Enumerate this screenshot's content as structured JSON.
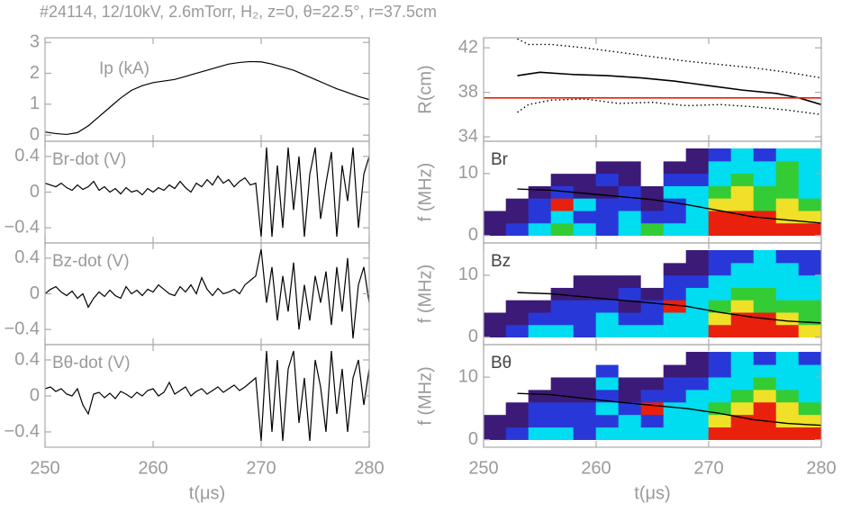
{
  "title": "#24114, 12/10kV, 2.6mTorr, H₂, z=0, θ=22.5°, r=37.5cm",
  "chart_data": [
    {
      "type": "line",
      "label": "Ip (kA)",
      "color": "#000000",
      "x": [
        250,
        251,
        252,
        253,
        254,
        255,
        256,
        257,
        258,
        259,
        260,
        261,
        262,
        263,
        264,
        265,
        266,
        267,
        268,
        269,
        270,
        271,
        272,
        273,
        274,
        275,
        276,
        277,
        278,
        279,
        280
      ],
      "values": [
        0.1,
        0.05,
        0.02,
        0.08,
        0.3,
        0.6,
        0.9,
        1.2,
        1.45,
        1.6,
        1.7,
        1.75,
        1.8,
        1.9,
        2.0,
        2.1,
        2.2,
        2.3,
        2.35,
        2.38,
        2.37,
        2.3,
        2.2,
        2.1,
        1.95,
        1.8,
        1.65,
        1.5,
        1.38,
        1.25,
        1.15
      ],
      "xlim": [
        250,
        280
      ],
      "xticks": [
        250,
        260,
        270,
        280
      ],
      "ylim": [
        -0.2,
        3.15
      ],
      "yticks": [
        0,
        1,
        2,
        3
      ]
    },
    {
      "type": "line",
      "label": "Br-dot (V)",
      "color": "#000000",
      "x": [
        250,
        250.5,
        251,
        251.5,
        252,
        252.5,
        253,
        253.5,
        254,
        254.5,
        255,
        255.5,
        256,
        256.5,
        257,
        257.5,
        258,
        258.5,
        259,
        259.5,
        260,
        260.5,
        261,
        261.5,
        262,
        262.5,
        263,
        263.5,
        264,
        264.5,
        265,
        265.5,
        266,
        266.5,
        267,
        267.5,
        268,
        268.5,
        269,
        269.5,
        270,
        270.5,
        271,
        271.5,
        272,
        272.5,
        273,
        273.5,
        274,
        274.5,
        275,
        275.5,
        276,
        276.5,
        277,
        277.5,
        278,
        278.5,
        279,
        279.5,
        280
      ],
      "values": [
        0.1,
        0.08,
        0.06,
        0.1,
        0.05,
        0.02,
        0.08,
        0.03,
        0.06,
        0.12,
        0.02,
        0.06,
        0.0,
        0.04,
        -0.02,
        0.05,
        0.0,
        0.02,
        -0.03,
        0.04,
        0.0,
        0.05,
        0.02,
        0.08,
        0.04,
        0.12,
        0.05,
        0.0,
        0.1,
        0.06,
        0.14,
        0.08,
        0.18,
        0.1,
        0.14,
        0.06,
        0.12,
        0.16,
        0.08,
        0.1,
        -0.5,
        0.5,
        -0.5,
        0.3,
        -0.4,
        0.5,
        -0.2,
        0.4,
        -0.5,
        0.2,
        0.5,
        -0.3,
        0.1,
        0.45,
        -0.5,
        0.3,
        -0.1,
        0.5,
        -0.4,
        0.2,
        0.4
      ],
      "xlim": [
        250,
        280
      ],
      "xticks": [
        250,
        260,
        270,
        280
      ],
      "ylim": [
        -0.57,
        0.57
      ],
      "yticks": [
        0.4,
        0,
        {
          "value": -0.4,
          "label": "−0.4"
        }
      ]
    },
    {
      "type": "line",
      "label": "Bz-dot (V)",
      "color": "#000000",
      "x": [
        250,
        250.5,
        251,
        251.5,
        252,
        252.5,
        253,
        253.5,
        254,
        254.5,
        255,
        255.5,
        256,
        256.5,
        257,
        257.5,
        258,
        258.5,
        259,
        259.5,
        260,
        260.5,
        261,
        261.5,
        262,
        262.5,
        263,
        263.5,
        264,
        264.5,
        265,
        265.5,
        266,
        266.5,
        267,
        267.5,
        268,
        268.5,
        269,
        269.5,
        270,
        270.5,
        271,
        271.5,
        272,
        272.5,
        273,
        273.5,
        274,
        274.5,
        275,
        275.5,
        276,
        276.5,
        277,
        277.5,
        278,
        278.5,
        279,
        279.5,
        280
      ],
      "values": [
        0.0,
        0.05,
        0.08,
        0.02,
        -0.02,
        0.03,
        -0.05,
        0.0,
        -0.15,
        -0.05,
        0.02,
        -0.03,
        0.04,
        -0.02,
        -0.05,
        0.08,
        0.0,
        0.04,
        -0.02,
        0.05,
        0.02,
        0.1,
        0.05,
        0.0,
        -0.02,
        0.08,
        0.02,
        0.1,
        0.0,
        0.18,
        0.05,
        -0.02,
        0.06,
        0.0,
        0.02,
        0.05,
        0.0,
        0.1,
        0.15,
        0.2,
        0.5,
        -0.1,
        0.3,
        -0.3,
        0.2,
        -0.2,
        0.35,
        -0.4,
        0.1,
        -0.3,
        0.2,
        -0.1,
        0.25,
        -0.35,
        0.3,
        -0.2,
        0.4,
        -0.5,
        0.1,
        0.3,
        -0.1
      ],
      "xlim": [
        250,
        280
      ],
      "xticks": [
        250,
        260,
        270,
        280
      ],
      "ylim": [
        -0.57,
        0.57
      ],
      "yticks": [
        0.4,
        0,
        {
          "value": -0.4,
          "label": "−0.4"
        }
      ]
    },
    {
      "type": "line",
      "label": "Bθ-dot (V)",
      "color": "#000000",
      "xlabel": "t(μs)",
      "x": [
        250,
        250.5,
        251,
        251.5,
        252,
        252.5,
        253,
        253.5,
        254,
        254.5,
        255,
        255.5,
        256,
        256.5,
        257,
        257.5,
        258,
        258.5,
        259,
        259.5,
        260,
        260.5,
        261,
        261.5,
        262,
        262.5,
        263,
        263.5,
        264,
        264.5,
        265,
        265.5,
        266,
        266.5,
        267,
        267.5,
        268,
        268.5,
        269,
        269.5,
        270,
        270.5,
        271,
        271.5,
        272,
        272.5,
        273,
        273.5,
        274,
        274.5,
        275,
        275.5,
        276,
        276.5,
        277,
        277.5,
        278,
        278.5,
        279,
        279.5,
        280
      ],
      "values": [
        0.08,
        0.1,
        0.05,
        0.08,
        0.02,
        0.0,
        0.08,
        -0.1,
        -0.2,
        0.02,
        0.04,
        -0.02,
        0.03,
        -0.03,
        0.05,
        0.02,
        -0.02,
        0.04,
        0.0,
        0.06,
        0.08,
        0.0,
        0.04,
        0.15,
        0.02,
        0.06,
        0.1,
        0.0,
        0.05,
        0.08,
        0.02,
        0.06,
        0.1,
        0.04,
        0.08,
        0.12,
        0.06,
        0.1,
        0.15,
        0.2,
        -0.5,
        0.5,
        -0.4,
        0.4,
        -0.5,
        0.3,
        0.5,
        -0.3,
        0.2,
        -0.5,
        0.4,
        0.1,
        -0.4,
        0.5,
        -0.2,
        0.3,
        -0.4,
        0.2,
        0.4,
        -0.1,
        0.3
      ],
      "xlim": [
        250,
        280
      ],
      "xticks": [
        250,
        260,
        270,
        280
      ],
      "ylim": [
        -0.57,
        0.57
      ],
      "yticks": [
        0.4,
        0,
        {
          "value": -0.4,
          "label": "−0.4"
        }
      ]
    },
    {
      "type": "multiline",
      "ylabel": "R(cm)",
      "series": [
        {
          "color": "#000000",
          "style": "solid",
          "x": [
            253,
            255,
            258,
            261,
            264,
            267,
            270,
            273,
            276,
            278,
            280
          ],
          "values": [
            39.5,
            39.8,
            39.6,
            39.5,
            39.3,
            39.0,
            38.6,
            38.2,
            37.9,
            37.5,
            36.9
          ]
        },
        {
          "color": "#000000",
          "style": "dotted",
          "x": [
            253,
            254,
            256,
            259,
            262,
            265,
            268,
            271,
            274,
            277,
            280
          ],
          "values": [
            42.8,
            42.3,
            42.3,
            42.0,
            41.6,
            41.2,
            40.8,
            40.5,
            40.2,
            39.8,
            39.3
          ]
        },
        {
          "color": "#000000",
          "style": "dotted",
          "x": [
            253,
            254,
            256,
            259,
            262,
            265,
            268,
            271,
            274,
            277,
            280
          ],
          "values": [
            36.2,
            36.9,
            37.3,
            37.4,
            37.0,
            37.1,
            36.8,
            36.9,
            36.7,
            36.4,
            36.0
          ]
        },
        {
          "color": "#e8200c",
          "style": "solid",
          "x": [
            250,
            280
          ],
          "values": [
            37.5,
            37.5
          ]
        }
      ],
      "xlim": [
        250,
        280
      ],
      "xticks": [
        250,
        260,
        270,
        280
      ],
      "ylim": [
        33.6,
        42.9
      ],
      "yticks": [
        34,
        38,
        42
      ]
    },
    {
      "type": "heatmap",
      "label": "Br",
      "ylabel": "f (MHz)",
      "colors": [
        "#ffffff",
        "#3c1a78",
        "#2838d8",
        "#00dcf0",
        "#34cc34",
        "#f0e028",
        "#e8200c"
      ],
      "xbins": [
        250,
        252,
        254,
        256,
        258,
        260,
        262,
        264,
        266,
        268,
        270,
        272,
        274,
        276,
        278,
        280
      ],
      "ybins": [
        0,
        2,
        4,
        6,
        8,
        10,
        12,
        14
      ],
      "z": [
        [
          1,
          2,
          3,
          4,
          3,
          2,
          3,
          4,
          3,
          3,
          6,
          6,
          6,
          6,
          6
        ],
        [
          1,
          1,
          2,
          3,
          2,
          2,
          3,
          2,
          2,
          3,
          6,
          6,
          6,
          5,
          5
        ],
        [
          0,
          1,
          2,
          6,
          3,
          2,
          2,
          1,
          2,
          3,
          5,
          5,
          4,
          5,
          4
        ],
        [
          0,
          0,
          1,
          2,
          1,
          1,
          2,
          1,
          3,
          3,
          4,
          5,
          4,
          4,
          3
        ],
        [
          0,
          0,
          0,
          1,
          1,
          2,
          1,
          0,
          2,
          2,
          3,
          4,
          3,
          4,
          3
        ],
        [
          0,
          0,
          0,
          0,
          0,
          1,
          1,
          0,
          1,
          1,
          3,
          3,
          3,
          4,
          3
        ],
        [
          0,
          0,
          0,
          0,
          0,
          0,
          0,
          0,
          0,
          1,
          2,
          3,
          2,
          3,
          3
        ]
      ],
      "line": {
        "color": "#000000",
        "x": [
          253,
          256,
          259,
          262,
          265,
          268,
          271,
          274,
          277,
          280
        ],
        "values": [
          7.5,
          7.3,
          6.8,
          6.3,
          5.8,
          5.0,
          4.0,
          3.0,
          2.5,
          2.0
        ]
      },
      "xlim": [
        250,
        280
      ],
      "xticks": [
        250,
        260,
        270,
        280
      ],
      "ylim": [
        -1.2,
        15.2
      ],
      "yticks": [
        0,
        10
      ]
    },
    {
      "type": "heatmap",
      "label": "Bz",
      "ylabel": "f (MHz)",
      "colors": [
        "#ffffff",
        "#3c1a78",
        "#2838d8",
        "#00dcf0",
        "#34cc34",
        "#f0e028",
        "#e8200c"
      ],
      "xbins": [
        250,
        252,
        254,
        256,
        258,
        260,
        262,
        264,
        266,
        268,
        270,
        272,
        274,
        276,
        278,
        280
      ],
      "ybins": [
        0,
        2,
        4,
        6,
        8,
        10,
        12,
        14
      ],
      "z": [
        [
          1,
          2,
          3,
          3,
          2,
          3,
          3,
          3,
          3,
          3,
          6,
          6,
          6,
          6,
          5
        ],
        [
          1,
          1,
          2,
          2,
          2,
          3,
          2,
          2,
          3,
          3,
          5,
          6,
          6,
          5,
          4
        ],
        [
          0,
          1,
          1,
          2,
          2,
          2,
          1,
          2,
          6,
          3,
          4,
          5,
          4,
          4,
          4
        ],
        [
          0,
          0,
          0,
          1,
          1,
          1,
          2,
          1,
          2,
          3,
          3,
          4,
          4,
          3,
          3
        ],
        [
          0,
          0,
          0,
          0,
          1,
          1,
          1,
          0,
          2,
          2,
          3,
          3,
          3,
          3,
          3
        ],
        [
          0,
          0,
          0,
          0,
          0,
          0,
          0,
          0,
          1,
          1,
          2,
          3,
          3,
          3,
          2
        ],
        [
          0,
          0,
          0,
          0,
          0,
          0,
          0,
          0,
          0,
          1,
          2,
          2,
          3,
          2,
          2
        ]
      ],
      "line": {
        "color": "#000000",
        "x": [
          253,
          256,
          259,
          262,
          265,
          268,
          271,
          274,
          277,
          280
        ],
        "values": [
          7.2,
          7.0,
          6.5,
          6.0,
          5.5,
          5.0,
          4.0,
          3.2,
          2.6,
          2.3
        ]
      },
      "xlim": [
        250,
        280
      ],
      "xticks": [
        250,
        260,
        270,
        280
      ],
      "ylim": [
        -1.2,
        15.2
      ],
      "yticks": [
        0,
        10
      ]
    },
    {
      "type": "heatmap",
      "label": "Bθ",
      "ylabel": "f (MHz)",
      "xlabel": "t(μs)",
      "colors": [
        "#ffffff",
        "#3c1a78",
        "#2838d8",
        "#00dcf0",
        "#34cc34",
        "#f0e028",
        "#e8200c"
      ],
      "xbins": [
        250,
        252,
        254,
        256,
        258,
        260,
        262,
        264,
        266,
        268,
        270,
        272,
        274,
        276,
        278,
        280
      ],
      "ybins": [
        0,
        2,
        4,
        6,
        8,
        10,
        12,
        14
      ],
      "z": [
        [
          1,
          2,
          3,
          3,
          2,
          3,
          3,
          3,
          3,
          3,
          6,
          6,
          6,
          6,
          6
        ],
        [
          1,
          1,
          2,
          2,
          2,
          2,
          3,
          2,
          3,
          3,
          5,
          6,
          6,
          5,
          5
        ],
        [
          0,
          1,
          2,
          2,
          2,
          3,
          2,
          6,
          3,
          3,
          4,
          5,
          6,
          5,
          4
        ],
        [
          0,
          0,
          1,
          1,
          1,
          2,
          1,
          2,
          2,
          3,
          3,
          4,
          5,
          4,
          3
        ],
        [
          0,
          0,
          0,
          1,
          1,
          3,
          1,
          1,
          2,
          2,
          3,
          3,
          4,
          3,
          3
        ],
        [
          0,
          0,
          0,
          0,
          0,
          2,
          0,
          0,
          1,
          1,
          2,
          3,
          3,
          3,
          3
        ],
        [
          0,
          0,
          0,
          0,
          0,
          0,
          0,
          0,
          0,
          1,
          2,
          3,
          2,
          3,
          2
        ]
      ],
      "line": {
        "color": "#000000",
        "x": [
          253,
          256,
          259,
          262,
          265,
          268,
          271,
          274,
          277,
          280
        ],
        "values": [
          7.4,
          7.2,
          6.6,
          6.0,
          5.5,
          5.0,
          4.2,
          3.2,
          2.6,
          2.3
        ]
      },
      "xlim": [
        250,
        280
      ],
      "xticks": [
        250,
        260,
        270,
        280
      ],
      "ylim": [
        -1.2,
        15.2
      ],
      "yticks": [
        0,
        10
      ]
    }
  ]
}
